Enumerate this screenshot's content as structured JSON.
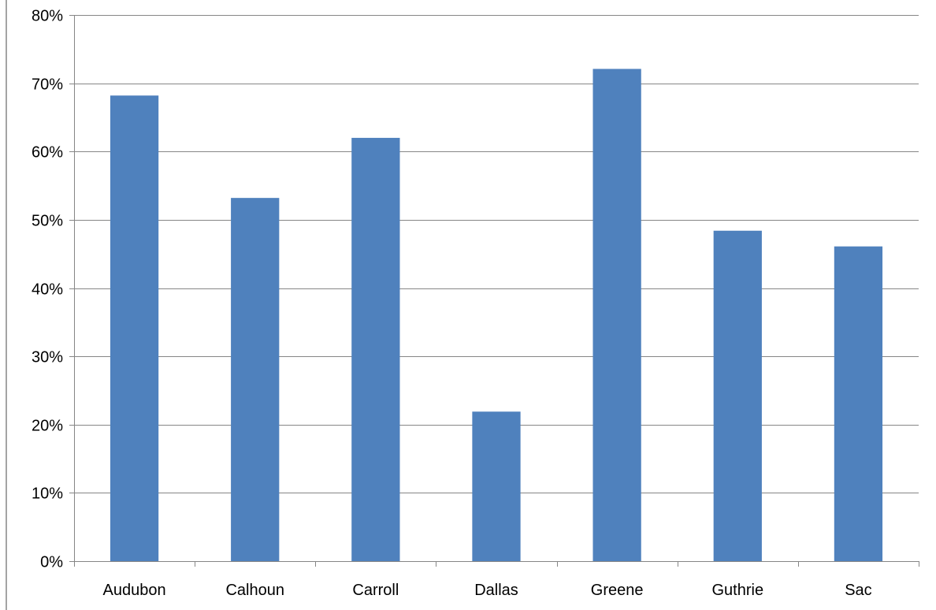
{
  "chart_data": {
    "type": "bar",
    "categories": [
      "Audubon",
      "Calhoun",
      "Carroll",
      "Dallas",
      "Greene",
      "Guthrie",
      "Sac"
    ],
    "values": [
      68.2,
      53.2,
      62.0,
      21.9,
      72.1,
      48.4,
      46.1
    ],
    "title": "",
    "xlabel": "",
    "ylabel": "",
    "ylim": [
      0,
      80
    ],
    "y_ticks": [
      0,
      10,
      20,
      30,
      40,
      50,
      60,
      70,
      80
    ],
    "y_tick_labels": [
      "0%",
      "10%",
      "20%",
      "30%",
      "40%",
      "50%",
      "60%",
      "70%",
      "80%"
    ],
    "grid": true,
    "legend": "none",
    "bar_color": "#4f81bd"
  }
}
